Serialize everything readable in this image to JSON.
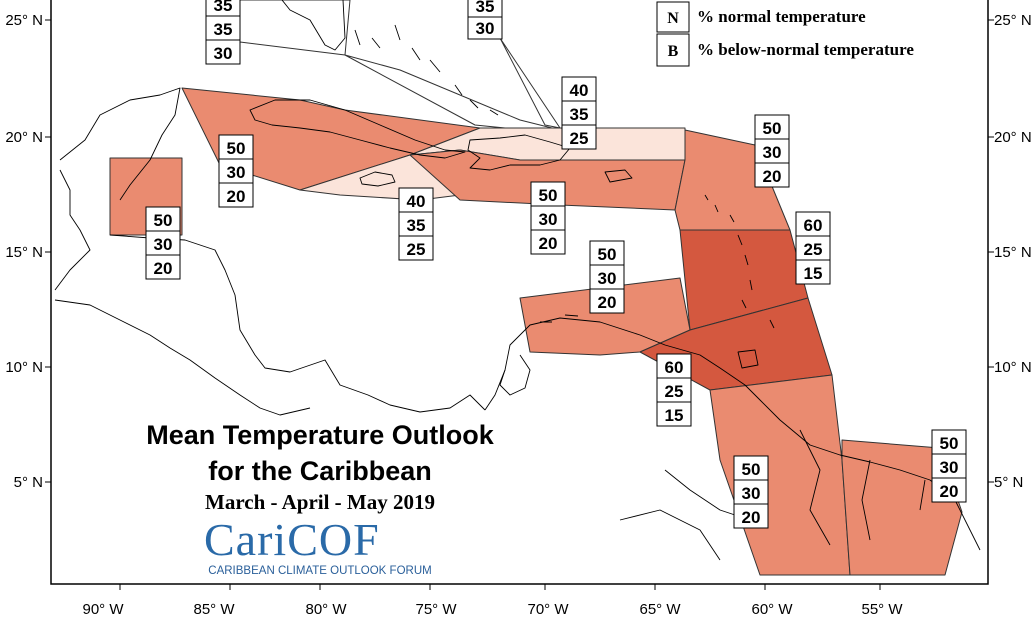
{
  "title": {
    "line1": "Mean Temperature Outlook",
    "line2": "for the Caribbean"
  },
  "subtitle": "March - April - May 2019",
  "logo": {
    "name": "CariCOF",
    "tagline": "CARIBBEAN CLIMATE OUTLOOK FORUM"
  },
  "legend": [
    {
      "key": "N",
      "label": "% normal temperature"
    },
    {
      "key": "B",
      "label": "% below-normal temperature"
    }
  ],
  "axes": {
    "lon_ticks": [
      "90° W",
      "85° W",
      "80° W",
      "75° W",
      "70° W",
      "65° W",
      "60° W",
      "55° W"
    ],
    "lat_ticks": [
      "25° N",
      "20° N",
      "15° N",
      "10° N",
      "5° N"
    ]
  },
  "colors": {
    "dark": "#d4583f",
    "medium": "#ea8b70",
    "light": "#fbe4da",
    "outline": "#333333"
  },
  "zones": [
    {
      "id": "bahamas-west",
      "values": [
        "35",
        "35",
        "30"
      ],
      "fill": "none"
    },
    {
      "id": "bahamas-east",
      "values": [
        "35",
        "30"
      ],
      "fill": "none"
    },
    {
      "id": "cayman-cuba-west",
      "values": [
        "50",
        "30",
        "20"
      ],
      "fill": "medium"
    },
    {
      "id": "belize-honduras",
      "values": [
        "50",
        "30",
        "20"
      ],
      "fill": "medium"
    },
    {
      "id": "jamaica",
      "values": [
        "40",
        "35",
        "25"
      ],
      "fill": "light"
    },
    {
      "id": "cuba-east-hispaniola-north",
      "values": [
        "40",
        "35",
        "25"
      ],
      "fill": "light"
    },
    {
      "id": "hispaniola-puerto-rico",
      "values": [
        "50",
        "30",
        "20"
      ],
      "fill": "medium"
    },
    {
      "id": "leeward-islands",
      "values": [
        "50",
        "30",
        "20"
      ],
      "fill": "medium"
    },
    {
      "id": "windward-islands",
      "values": [
        "60",
        "25",
        "15"
      ],
      "fill": "dark"
    },
    {
      "id": "abc-islands",
      "values": [
        "50",
        "30",
        "20"
      ],
      "fill": "medium"
    },
    {
      "id": "trinidad-tobago",
      "values": [
        "60",
        "25",
        "15"
      ],
      "fill": "dark"
    },
    {
      "id": "guyana",
      "values": [
        "50",
        "30",
        "20"
      ],
      "fill": "medium"
    },
    {
      "id": "suriname-french-guiana",
      "values": [
        "50",
        "30",
        "20"
      ],
      "fill": "medium"
    }
  ]
}
